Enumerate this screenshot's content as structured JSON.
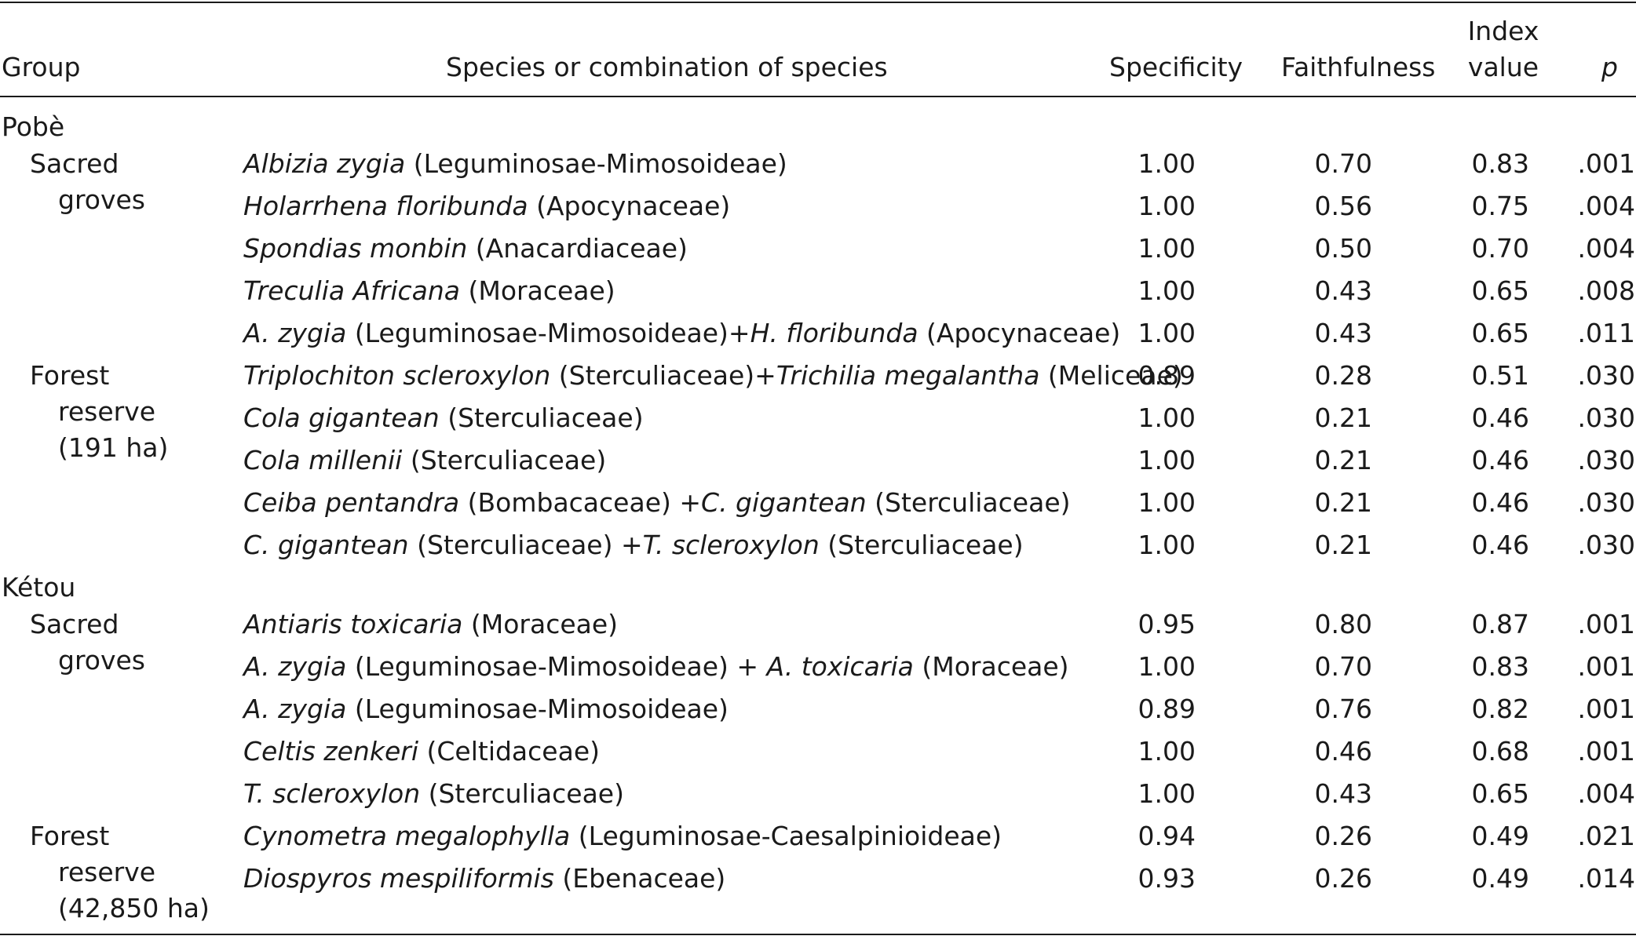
{
  "headers": {
    "group": "Group",
    "species": "Species or combination of species",
    "specificity": "Specificity",
    "faithfulness": "Faithfulness",
    "index_line1": "Index",
    "index_line2": "value",
    "p": "p"
  },
  "sections": [
    {
      "name": "Pobè",
      "subgroups": [
        {
          "label_lines": [
            "Sacred",
            "groves"
          ],
          "rows": [
            {
              "parts": [
                {
                  "t": "Albizia zygia",
                  "i": true
                },
                {
                  "t": " (Leguminosae-Mimosoideae)",
                  "i": false
                }
              ],
              "specificity": "1.00",
              "faithfulness": "0.70",
              "index": "0.83",
              "p": ".001"
            },
            {
              "parts": [
                {
                  "t": "Holarrhena floribunda",
                  "i": true
                },
                {
                  "t": " (Apocynaceae)",
                  "i": false
                }
              ],
              "specificity": "1.00",
              "faithfulness": "0.56",
              "index": "0.75",
              "p": ".004"
            },
            {
              "parts": [
                {
                  "t": "Spondias monbin",
                  "i": true
                },
                {
                  "t": " (Anacardiaceae)",
                  "i": false
                }
              ],
              "specificity": "1.00",
              "faithfulness": "0.50",
              "index": "0.70",
              "p": ".004"
            },
            {
              "parts": [
                {
                  "t": "Treculia Africana",
                  "i": true
                },
                {
                  "t": " (Moraceae)",
                  "i": false
                }
              ],
              "specificity": "1.00",
              "faithfulness": "0.43",
              "index": "0.65",
              "p": ".008"
            },
            {
              "parts": [
                {
                  "t": "A. zygia",
                  "i": true
                },
                {
                  "t": " (Leguminosae-Mimosoideae)+",
                  "i": false
                },
                {
                  "t": "H. floribunda",
                  "i": true
                },
                {
                  "t": " (Apocynaceae)",
                  "i": false
                }
              ],
              "specificity": "1.00",
              "faithfulness": "0.43",
              "index": "0.65",
              "p": ".011"
            }
          ]
        },
        {
          "label_lines": [
            "Forest",
            "reserve",
            "(191 ha)"
          ],
          "rows": [
            {
              "parts": [
                {
                  "t": "Triplochiton scleroxylon",
                  "i": true
                },
                {
                  "t": " (Sterculiaceae)+",
                  "i": false
                },
                {
                  "t": "Trichilia megalantha",
                  "i": true
                },
                {
                  "t": " (Meliceae)",
                  "i": false
                }
              ],
              "specificity": "0.89",
              "faithfulness": "0.28",
              "index": "0.51",
              "p": ".030"
            },
            {
              "parts": [
                {
                  "t": "Cola gigantean",
                  "i": true
                },
                {
                  "t": " (Sterculiaceae)",
                  "i": false
                }
              ],
              "specificity": "1.00",
              "faithfulness": "0.21",
              "index": "0.46",
              "p": ".030"
            },
            {
              "parts": [
                {
                  "t": "Cola millenii",
                  "i": true
                },
                {
                  "t": " (Sterculiaceae)",
                  "i": false
                }
              ],
              "specificity": "1.00",
              "faithfulness": "0.21",
              "index": "0.46",
              "p": ".030"
            },
            {
              "parts": [
                {
                  "t": "Ceiba pentandra",
                  "i": true
                },
                {
                  "t": " (Bombacaceae) +",
                  "i": false
                },
                {
                  "t": "C. gigantean",
                  "i": true
                },
                {
                  "t": " (Sterculiaceae)",
                  "i": false
                }
              ],
              "specificity": "1.00",
              "faithfulness": "0.21",
              "index": "0.46",
              "p": ".030"
            },
            {
              "parts": [
                {
                  "t": "C. gigantean",
                  "i": true
                },
                {
                  "t": " (Sterculiaceae) +",
                  "i": false
                },
                {
                  "t": "T. scleroxylon",
                  "i": true
                },
                {
                  "t": " (Sterculiaceae)",
                  "i": false
                }
              ],
              "specificity": "1.00",
              "faithfulness": "0.21",
              "index": "0.46",
              "p": ".030"
            }
          ]
        }
      ]
    },
    {
      "name": "Kétou",
      "subgroups": [
        {
          "label_lines": [
            "Sacred",
            "groves"
          ],
          "rows": [
            {
              "parts": [
                {
                  "t": "Antiaris toxicaria",
                  "i": true
                },
                {
                  "t": " (Moraceae)",
                  "i": false
                }
              ],
              "specificity": "0.95",
              "faithfulness": "0.80",
              "index": "0.87",
              "p": ".001"
            },
            {
              "parts": [
                {
                  "t": "A. zygia",
                  "i": true
                },
                {
                  "t": " (Leguminosae-Mimosoideae) + ",
                  "i": false
                },
                {
                  "t": "A. toxicaria",
                  "i": true
                },
                {
                  "t": " (Moraceae)",
                  "i": false
                }
              ],
              "specificity": "1.00",
              "faithfulness": "0.70",
              "index": "0.83",
              "p": ".001"
            },
            {
              "parts": [
                {
                  "t": "A. zygia",
                  "i": true
                },
                {
                  "t": " (Leguminosae-Mimosoideae)",
                  "i": false
                }
              ],
              "specificity": "0.89",
              "faithfulness": "0.76",
              "index": "0.82",
              "p": ".001"
            },
            {
              "parts": [
                {
                  "t": "Celtis zenkeri",
                  "i": true
                },
                {
                  "t": " (Celtidaceae)",
                  "i": false
                }
              ],
              "specificity": "1.00",
              "faithfulness": "0.46",
              "index": "0.68",
              "p": ".001"
            },
            {
              "parts": [
                {
                  "t": "T. scleroxylon",
                  "i": true
                },
                {
                  "t": " (Sterculiaceae)",
                  "i": false
                }
              ],
              "specificity": "1.00",
              "faithfulness": "0.43",
              "index": "0.65",
              "p": ".004"
            }
          ]
        },
        {
          "label_lines": [
            "Forest",
            "reserve",
            "(42,850 ha)"
          ],
          "rows": [
            {
              "parts": [
                {
                  "t": "Cynometra megalophylla",
                  "i": true
                },
                {
                  "t": " (Leguminosae-Caesalpinioideae)",
                  "i": false
                }
              ],
              "specificity": "0.94",
              "faithfulness": "0.26",
              "index": "0.49",
              "p": ".021"
            },
            {
              "parts": [
                {
                  "t": "Diospyros mespiliformis",
                  "i": true
                },
                {
                  "t": " (Ebenaceae)",
                  "i": false
                }
              ],
              "specificity": "0.93",
              "faithfulness": "0.26",
              "index": "0.49",
              "p": ".014"
            }
          ]
        }
      ]
    }
  ]
}
